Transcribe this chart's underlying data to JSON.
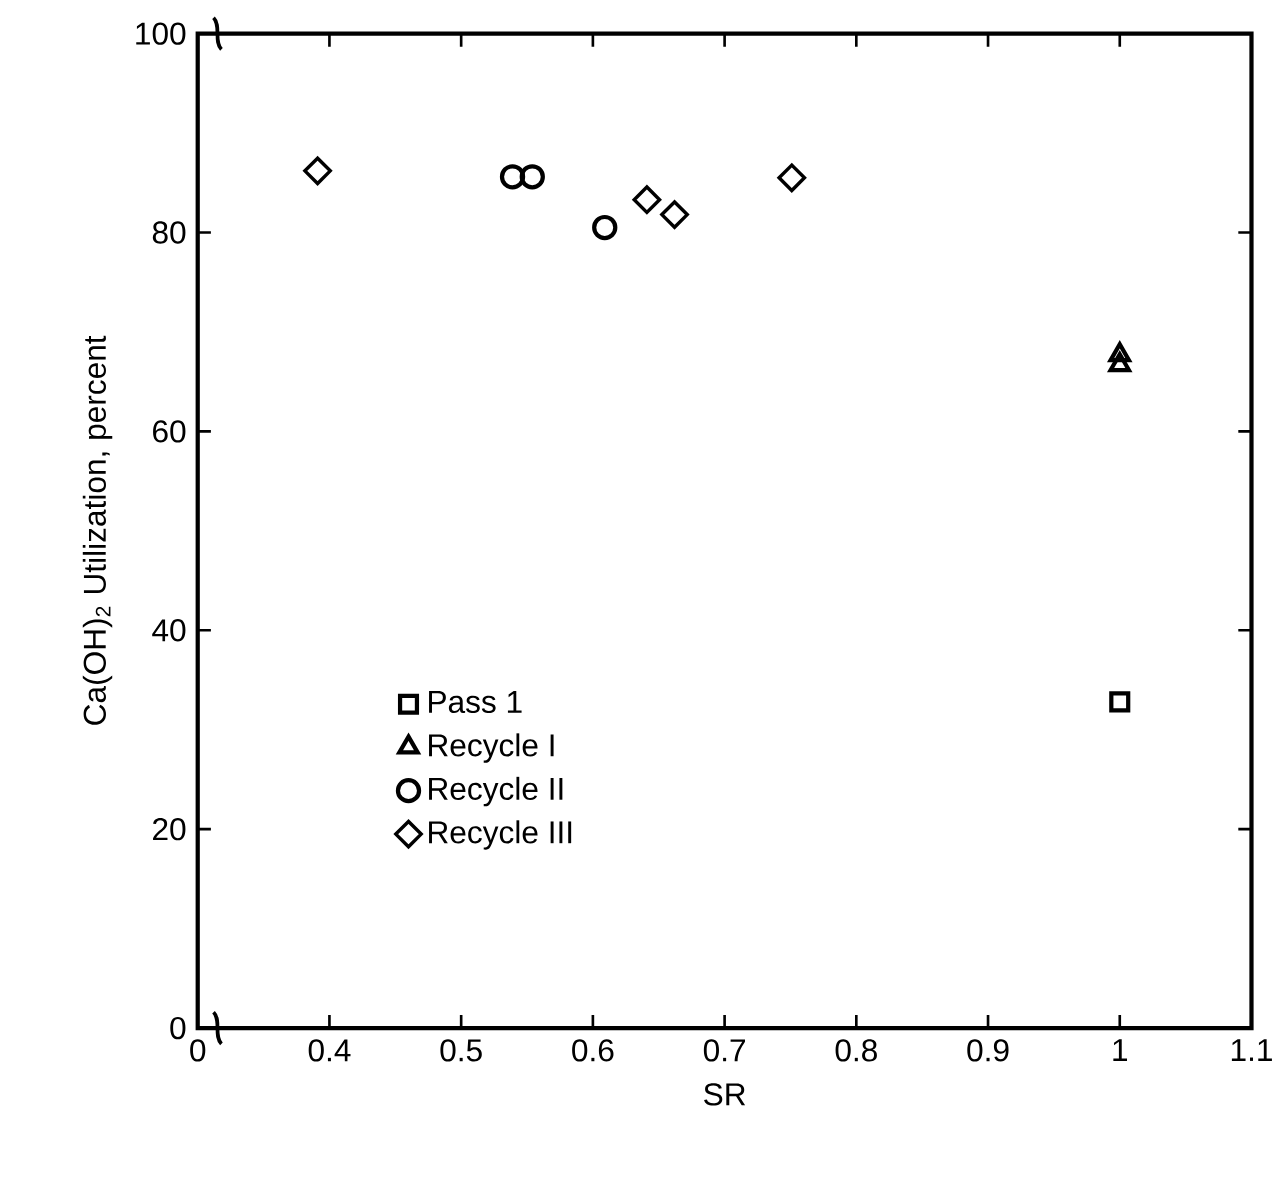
{
  "chart_data": {
    "type": "scatter",
    "xlabel": "SR",
    "ylabel": "Ca(OH)$_{2}$ Utilization, percent",
    "xlim": [
      0.3,
      1.1
    ],
    "ylim": [
      0,
      100
    ],
    "xticks": [
      {
        "value": 0.3,
        "label": "0"
      },
      0.4,
      0.5,
      0.6,
      0.7,
      0.8,
      0.9,
      1,
      1.1
    ],
    "yticks": [
      0,
      20,
      40,
      60,
      80,
      100
    ],
    "legend": "bottom left",
    "grid": false,
    "series": [
      {
        "name": "Pass 1",
        "color": "#000000",
        "marker": "square",
        "x": [
          1.0
        ],
        "values": [
          32.8
        ]
      },
      {
        "name": "Recycle I",
        "color": "#000000",
        "marker": "triangle",
        "x": [
          1.0,
          1.0
        ],
        "values": [
          67.7,
          66.7
        ]
      },
      {
        "name": "Recycle II",
        "color": "#000000",
        "marker": "circle",
        "x": [
          0.539,
          0.554,
          0.609
        ],
        "values": [
          85.6,
          85.6,
          80.5
        ]
      },
      {
        "name": "Recycle III",
        "color": "#000000",
        "marker": "diamond",
        "x": [
          0.391,
          0.641,
          0.662,
          0.751
        ],
        "values": [
          86.2,
          83.3,
          81.8,
          85.5
        ]
      }
    ]
  }
}
